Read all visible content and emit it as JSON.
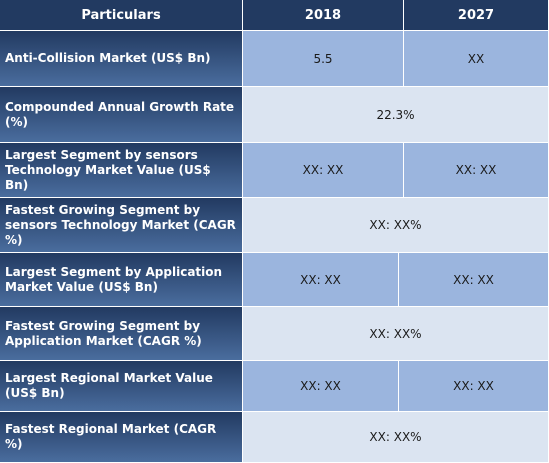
{
  "colors": {
    "header_bg": "#223a61",
    "label_bg_gradient": [
      "#223a61",
      "#4a6d9e"
    ],
    "value_bg_medium": "#9bb5de",
    "value_bg_light": "#dbe4f1"
  },
  "header": {
    "particulars": "Particulars",
    "col_2018": "2018",
    "col_2027": "2027"
  },
  "rows": [
    {
      "label": "Anti-Collision  Market (US$ Bn)",
      "v2018": "5.5",
      "v2027": "XX"
    },
    {
      "label": "Compounded Annual Growth Rate (%)",
      "merged": "22.3%"
    },
    {
      "label": "Largest Segment by sensors Technology  Market Value (US$ Bn)",
      "v2018": "XX: XX",
      "v2027": "XX: XX"
    },
    {
      "label": "Fastest Growing Segment by sensors Technology Market (CAGR %)",
      "merged": "XX: XX%"
    },
    {
      "label": "Largest Segment by Application Market Value (US$ Bn)",
      "v2018": "XX: XX",
      "v2027": "XX: XX"
    },
    {
      "label": "Fastest Growing Segment by Application Market (CAGR %)",
      "merged": "XX: XX%"
    },
    {
      "label": "Largest Regional Market Value (US$ Bn)",
      "v2018": "XX: XX",
      "v2027": "XX: XX"
    },
    {
      "label": "Fastest Regional Market (CAGR %)",
      "merged": "XX: XX%"
    }
  ]
}
